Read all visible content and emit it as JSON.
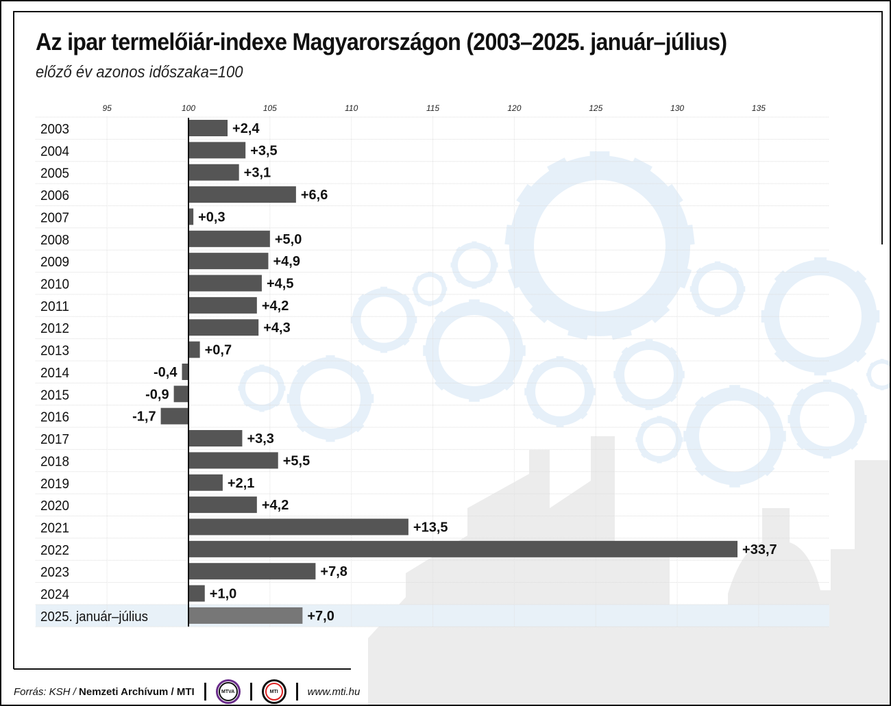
{
  "title": "Az ipar termelőiár-indexe Magyarországon (2003–2025. január–július)",
  "subtitle": "előző év azonos időszaka=100",
  "chart_data": {
    "type": "bar",
    "orientation": "horizontal",
    "baseline": 100,
    "xlim": [
      90,
      140
    ],
    "xticks": [
      95,
      100,
      105,
      110,
      115,
      120,
      125,
      130,
      135
    ],
    "grid": true,
    "categories": [
      "2003",
      "2004",
      "2005",
      "2006",
      "2007",
      "2008",
      "2009",
      "2010",
      "2011",
      "2012",
      "2013",
      "2014",
      "2015",
      "2016",
      "2017",
      "2018",
      "2019",
      "2020",
      "2021",
      "2022",
      "2023",
      "2024",
      "2025. január–július"
    ],
    "values": [
      2.4,
      3.5,
      3.1,
      6.6,
      0.3,
      5.0,
      4.9,
      4.5,
      4.2,
      4.3,
      0.7,
      -0.4,
      -0.9,
      -1.7,
      3.3,
      5.5,
      2.1,
      4.2,
      13.5,
      33.7,
      7.8,
      1.0,
      7.0
    ],
    "labels": [
      "+2,4",
      "+3,5",
      "+3,1",
      "+6,6",
      "+0,3",
      "+5,0",
      "+4,9",
      "+4,5",
      "+4,2",
      "+4,3",
      "+0,7",
      "-0,4",
      "-0,9",
      "-1,7",
      "+3,3",
      "+5,5",
      "+2,1",
      "+4,2",
      "+13,5",
      "+33,7",
      "+7,8",
      "+1,0",
      "+7,0"
    ],
    "bar_color": "#555555",
    "highlight_color": "#777777",
    "highlight_row_bg": "#e8f1f8"
  },
  "footer": {
    "source_prefix": "Forrás: KSH / ",
    "source_bold": "Nemzeti Archívum / MTI",
    "logo1": "MTVA",
    "logo2": "MTI",
    "url": "www.mti.hu"
  }
}
